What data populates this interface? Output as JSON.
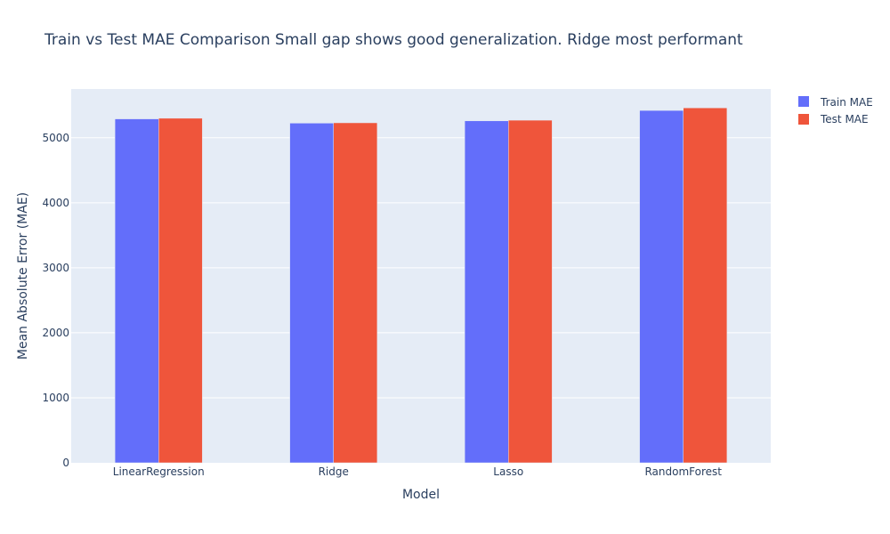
{
  "chart_data": {
    "type": "bar",
    "title": "Train vs Test MAE Comparison Small gap shows good generalization. Ridge most performant",
    "xlabel": "Model",
    "ylabel": "Mean Absolute Error (MAE)",
    "categories": [
      "LinearRegression",
      "Ridge",
      "Lasso",
      "RandomForest"
    ],
    "series": [
      {
        "name": "Train MAE",
        "color": "#636efa",
        "values": [
          5290,
          5225,
          5260,
          5420
        ]
      },
      {
        "name": "Test MAE",
        "color": "#ef553b",
        "values": [
          5300,
          5230,
          5270,
          5460
        ]
      }
    ],
    "ylim": [
      0,
      5750
    ],
    "yticks": [
      0,
      1000,
      2000,
      3000,
      4000,
      5000
    ],
    "ytick_labels": [
      "0",
      "1000",
      "2000",
      "3000",
      "4000",
      "5000"
    ],
    "grid": true,
    "legend_position": "top-right",
    "plot_bg": "#e5ecf6"
  }
}
